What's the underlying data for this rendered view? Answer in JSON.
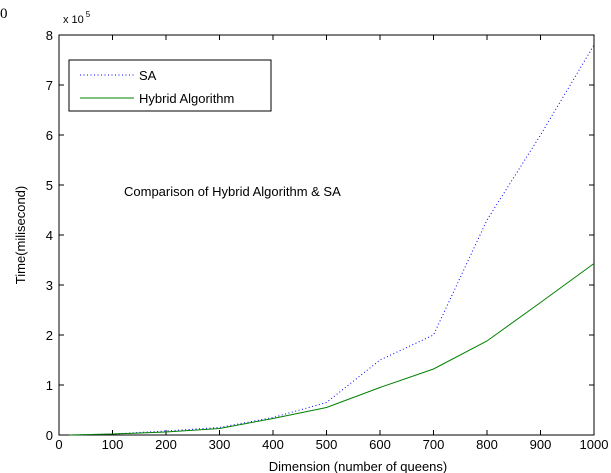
{
  "corner_label": "0",
  "chart_data": {
    "type": "line",
    "title": "",
    "annotation": "Comparison of Hybrid Algorithm & SA",
    "xlabel": "Dimension (number of queens)",
    "ylabel": "Time(milisecond)",
    "y_multiplier_base": "x 10",
    "y_multiplier_exp": "5",
    "xlim": [
      0,
      1000
    ],
    "ylim": [
      0,
      8
    ],
    "x_ticks": [
      0,
      100,
      200,
      300,
      400,
      500,
      600,
      700,
      800,
      900,
      1000
    ],
    "y_ticks": [
      0,
      1,
      2,
      3,
      4,
      5,
      6,
      7,
      8
    ],
    "grid": false,
    "legend_position": "top-left",
    "series": [
      {
        "name": "SA",
        "style": "dotted",
        "color": "#0000ff",
        "x": [
          20,
          100,
          200,
          300,
          400,
          500,
          600,
          700,
          800,
          900,
          1000
        ],
        "y": [
          0.0,
          0.02,
          0.08,
          0.15,
          0.35,
          0.65,
          1.5,
          2.0,
          4.3,
          6.0,
          7.8
        ]
      },
      {
        "name": "Hybrid Algorithm",
        "style": "solid",
        "color": "#008000",
        "x": [
          20,
          100,
          200,
          300,
          400,
          500,
          600,
          700,
          800,
          900,
          1000
        ],
        "y": [
          0.0,
          0.02,
          0.06,
          0.13,
          0.33,
          0.55,
          0.95,
          1.32,
          1.88,
          2.65,
          3.43
        ]
      }
    ]
  }
}
